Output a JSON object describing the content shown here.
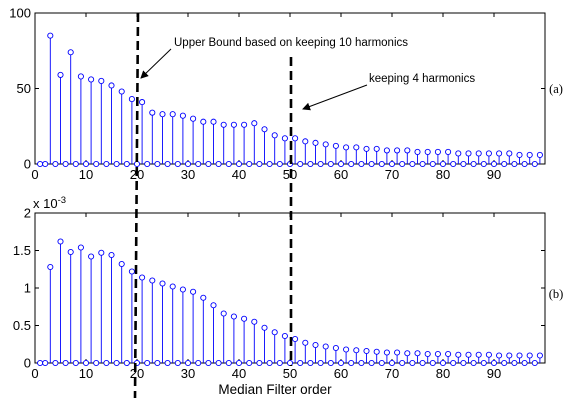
{
  "chart_data": [
    {
      "type": "stem",
      "panel_label": "(a)",
      "xlim": [
        0,
        100
      ],
      "ylim": [
        0,
        100
      ],
      "x_ticks": [
        "0",
        "10",
        "20",
        "30",
        "40",
        "50",
        "60",
        "70",
        "80",
        "90"
      ],
      "y_ticks": [
        "0",
        "50",
        "100"
      ],
      "series": [
        {
          "color": "#0000ff",
          "x": [
            1,
            2,
            3,
            4,
            5,
            6,
            7,
            8,
            9,
            10,
            11,
            12,
            13,
            14,
            15,
            16,
            17,
            18,
            19,
            20,
            21,
            22,
            23,
            24,
            25,
            26,
            27,
            28,
            29,
            30,
            31,
            32,
            33,
            34,
            35,
            36,
            37,
            38,
            39,
            40,
            41,
            42,
            43,
            44,
            45,
            46,
            47,
            48,
            49,
            50,
            51,
            52,
            53,
            54,
            55,
            56,
            57,
            58,
            59,
            60,
            61,
            62,
            63,
            64,
            65,
            66,
            67,
            68,
            69,
            70,
            71,
            72,
            73,
            74,
            75,
            76,
            77,
            78,
            79,
            80,
            81,
            82,
            83,
            84,
            85,
            86,
            87,
            88,
            89,
            90,
            91,
            92,
            93,
            94,
            95,
            96,
            97,
            98,
            99
          ],
          "y": [
            0,
            0,
            85,
            0,
            59,
            0,
            74,
            0,
            58,
            0,
            56,
            0,
            55,
            0,
            52,
            0,
            48,
            0,
            43,
            0,
            41,
            0,
            34,
            0,
            33,
            0,
            33,
            0,
            32,
            0,
            30,
            0,
            28,
            0,
            28,
            0,
            26,
            0,
            26,
            0,
            26,
            0,
            27,
            0,
            23,
            0,
            19,
            0,
            17,
            0,
            17,
            0,
            15,
            0,
            14,
            0,
            13,
            0,
            12,
            0,
            11,
            0,
            11,
            0,
            10,
            0,
            10,
            0,
            9,
            0,
            9,
            0,
            9,
            0,
            8,
            0,
            8,
            0,
            8,
            0,
            8,
            0,
            7,
            0,
            7,
            0,
            7,
            0,
            7,
            0,
            7,
            0,
            7,
            0,
            6,
            0,
            6,
            0,
            6
          ]
        }
      ],
      "annotations": [
        {
          "text": "Upper Bound based on keeping 10 harmonics",
          "x_line": 20
        },
        {
          "text": "keeping 4 harmonics",
          "x_line": 50
        }
      ]
    },
    {
      "type": "stem",
      "panel_label": "(b)",
      "xlabel": "Median Filter order",
      "scale_label": "x 10",
      "scale_exponent": "-3",
      "xlim": [
        0,
        100
      ],
      "ylim": [
        0,
        2
      ],
      "x_ticks": [
        "0",
        "10",
        "20",
        "30",
        "40",
        "50",
        "60",
        "70",
        "80",
        "90"
      ],
      "y_ticks": [
        "0",
        "0.5",
        "1",
        "1.5",
        "2"
      ],
      "series": [
        {
          "color": "#0000ff",
          "x": [
            1,
            2,
            3,
            4,
            5,
            6,
            7,
            8,
            9,
            10,
            11,
            12,
            13,
            14,
            15,
            16,
            17,
            18,
            19,
            20,
            21,
            22,
            23,
            24,
            25,
            26,
            27,
            28,
            29,
            30,
            31,
            32,
            33,
            34,
            35,
            36,
            37,
            38,
            39,
            40,
            41,
            42,
            43,
            44,
            45,
            46,
            47,
            48,
            49,
            50,
            51,
            52,
            53,
            54,
            55,
            56,
            57,
            58,
            59,
            60,
            61,
            62,
            63,
            64,
            65,
            66,
            67,
            68,
            69,
            70,
            71,
            72,
            73,
            74,
            75,
            76,
            77,
            78,
            79,
            80,
            81,
            82,
            83,
            84,
            85,
            86,
            87,
            88,
            89,
            90,
            91,
            92,
            93,
            94,
            95,
            96,
            97,
            98,
            99
          ],
          "y": [
            0,
            0,
            1.28,
            0,
            1.62,
            0,
            1.48,
            0,
            1.54,
            0,
            1.42,
            0,
            1.47,
            0,
            1.44,
            0,
            1.32,
            0,
            1.22,
            0,
            1.14,
            0,
            1.1,
            0,
            1.06,
            0,
            1.02,
            0,
            0.98,
            0,
            0.95,
            0,
            0.87,
            0,
            0.77,
            0,
            0.66,
            0,
            0.62,
            0,
            0.59,
            0,
            0.55,
            0,
            0.47,
            0,
            0.41,
            0,
            0.36,
            0,
            0.32,
            0,
            0.27,
            0,
            0.24,
            0,
            0.22,
            0,
            0.2,
            0,
            0.18,
            0,
            0.17,
            0,
            0.16,
            0,
            0.15,
            0,
            0.14,
            0,
            0.14,
            0,
            0.13,
            0,
            0.13,
            0,
            0.12,
            0,
            0.12,
            0,
            0.12,
            0,
            0.11,
            0,
            0.11,
            0,
            0.11,
            0,
            0.11,
            0,
            0.1,
            0,
            0.1,
            0,
            0.1,
            0,
            0.1,
            0,
            0.1
          ]
        }
      ]
    }
  ]
}
